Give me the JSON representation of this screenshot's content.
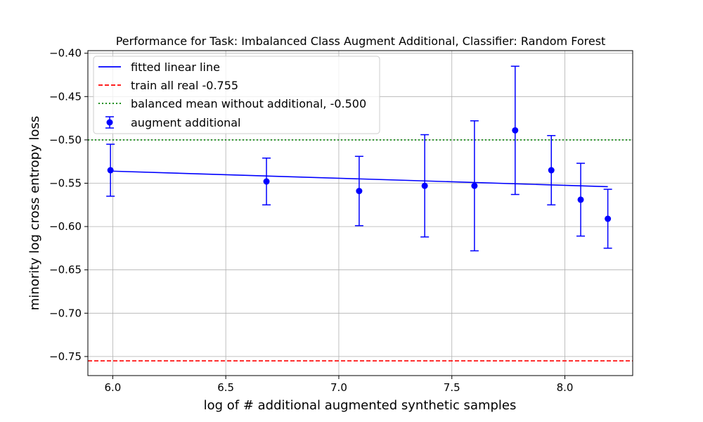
{
  "chart_data": {
    "type": "scatter",
    "title": "Performance for Task: Imbalanced Class Augment Additional, Classifier: Random Forest",
    "xlabel": "log of # additional augmented synthetic samples",
    "ylabel": "minority log cross entropy loss",
    "xlim": [
      5.89,
      8.3
    ],
    "ylim": [
      -0.772,
      -0.397
    ],
    "xticks": [
      6.0,
      6.5,
      7.0,
      7.5,
      8.0
    ],
    "xtick_labels": [
      "6.0",
      "6.5",
      "7.0",
      "7.5",
      "8.0"
    ],
    "yticks": [
      -0.4,
      -0.45,
      -0.5,
      -0.55,
      -0.6,
      -0.65,
      -0.7,
      -0.75
    ],
    "ytick_labels": [
      "−0.40",
      "−0.45",
      "−0.50",
      "−0.55",
      "−0.60",
      "−0.65",
      "−0.70",
      "−0.75"
    ],
    "grid": true,
    "legend_position": "top-left",
    "series": [
      {
        "name": "augment additional",
        "kind": "errorbar",
        "color": "#0000ff",
        "points": [
          {
            "x": 5.99,
            "y": -0.535,
            "err": 0.03
          },
          {
            "x": 6.68,
            "y": -0.548,
            "err": 0.027
          },
          {
            "x": 7.09,
            "y": -0.559,
            "err": 0.04
          },
          {
            "x": 7.38,
            "y": -0.553,
            "err": 0.059
          },
          {
            "x": 7.6,
            "y": -0.553,
            "err": 0.075
          },
          {
            "x": 7.78,
            "y": -0.489,
            "err": 0.074
          },
          {
            "x": 7.94,
            "y": -0.535,
            "err": 0.04
          },
          {
            "x": 8.07,
            "y": -0.569,
            "err": 0.042
          },
          {
            "x": 8.19,
            "y": -0.591,
            "err": 0.034
          }
        ]
      },
      {
        "name": "fitted linear line",
        "kind": "line",
        "color": "#0000ff",
        "x": [
          5.99,
          8.19
        ],
        "y": [
          -0.536,
          -0.554
        ]
      },
      {
        "name": "train all real -0.755",
        "kind": "hline",
        "style": "dashed",
        "color": "#ff0000",
        "y": -0.755
      },
      {
        "name": "balanced mean without additional, -0.500",
        "kind": "hline",
        "style": "dotted",
        "color": "#008000",
        "y": -0.5
      }
    ]
  }
}
